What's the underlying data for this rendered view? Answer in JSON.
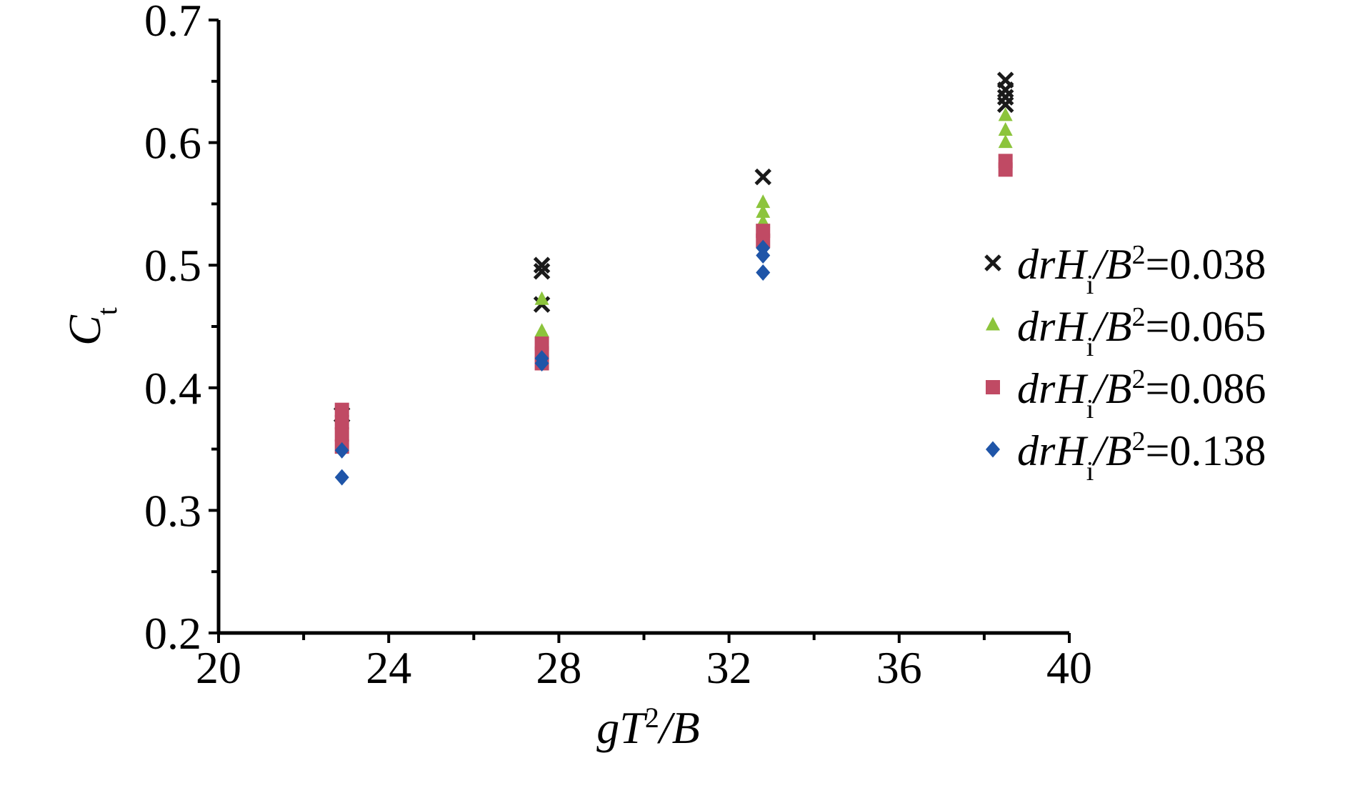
{
  "chart_data": {
    "type": "scatter",
    "xlabel": {
      "main": "gT",
      "sup": "2",
      "rest": "/B"
    },
    "ylabel": {
      "main": "C",
      "sub": "t"
    },
    "xlim": [
      20,
      40
    ],
    "ylim": [
      0.2,
      0.7
    ],
    "xticks": [
      20,
      24,
      28,
      32,
      36,
      40
    ],
    "xtick_labels": [
      "20",
      "24",
      "28",
      "32",
      "36",
      "40"
    ],
    "yticks": [
      0.2,
      0.3,
      0.4,
      0.5,
      0.6,
      0.7
    ],
    "ytick_labels": [
      "0.2",
      "0.3",
      "0.4",
      "0.5",
      "0.6",
      "0.7"
    ],
    "grid": false,
    "legend_position": "right",
    "series": [
      {
        "name": "drHi/B2=0.038",
        "legend": {
          "pre": "drH",
          "sub": "i",
          "mid": "/B",
          "sup": "2",
          "post": "=0.038"
        },
        "marker": "x",
        "color": "#1a1a1a",
        "points": [
          [
            22.9,
            0.378
          ],
          [
            27.6,
            0.495
          ],
          [
            27.6,
            0.5
          ],
          [
            27.6,
            0.468
          ],
          [
            32.8,
            0.572
          ],
          [
            38.5,
            0.651
          ],
          [
            38.5,
            0.643
          ],
          [
            38.5,
            0.637
          ],
          [
            38.5,
            0.631
          ]
        ]
      },
      {
        "name": "drHi/B2=0.065",
        "legend": {
          "pre": "drH",
          "sub": "i",
          "mid": "/B",
          "sup": "2",
          "post": "=0.065"
        },
        "marker": "triangle",
        "color": "#8cc43c",
        "points": [
          [
            22.9,
            0.37
          ],
          [
            27.6,
            0.472
          ],
          [
            27.6,
            0.446
          ],
          [
            32.8,
            0.551
          ],
          [
            32.8,
            0.543
          ],
          [
            32.8,
            0.535
          ],
          [
            38.5,
            0.622
          ],
          [
            38.5,
            0.61
          ],
          [
            38.5,
            0.6
          ]
        ]
      },
      {
        "name": "drHi/B2=0.086",
        "legend": {
          "pre": "drH",
          "sub": "i",
          "mid": "/B",
          "sup": "2",
          "post": "=0.086"
        },
        "marker": "square",
        "color": "#c04a64",
        "points": [
          [
            22.9,
            0.382
          ],
          [
            22.9,
            0.372
          ],
          [
            22.9,
            0.362
          ],
          [
            22.9,
            0.352
          ],
          [
            27.6,
            0.436
          ],
          [
            27.6,
            0.428
          ],
          [
            27.6,
            0.42
          ],
          [
            32.8,
            0.528
          ],
          [
            32.8,
            0.52
          ],
          [
            38.5,
            0.585
          ],
          [
            38.5,
            0.578
          ]
        ]
      },
      {
        "name": "drHi/B2=0.138",
        "legend": {
          "pre": "drH",
          "sub": "i",
          "mid": "/B",
          "sup": "2",
          "post": "=0.138"
        },
        "marker": "diamond",
        "color": "#1f55a8",
        "points": [
          [
            22.9,
            0.349
          ],
          [
            22.9,
            0.327
          ],
          [
            27.6,
            0.424
          ],
          [
            27.6,
            0.42
          ],
          [
            32.8,
            0.514
          ],
          [
            32.8,
            0.508
          ],
          [
            32.8,
            0.494
          ]
        ]
      }
    ]
  }
}
